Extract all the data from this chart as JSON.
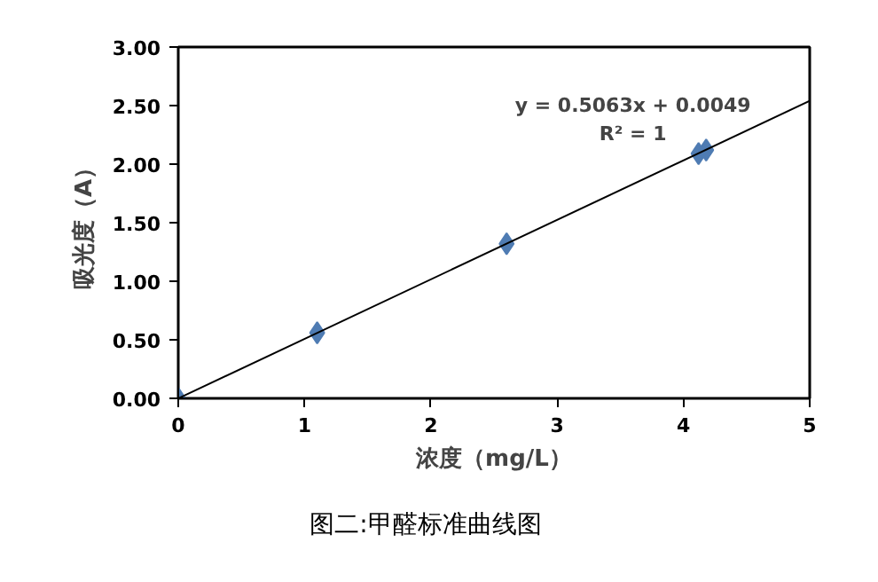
{
  "chart_data": {
    "type": "scatter",
    "xlabel": "浓度（mg/L）",
    "ylabel": "吸光度（A）",
    "xlim": [
      0,
      5
    ],
    "xticks": [
      0,
      1,
      2,
      3,
      4,
      5
    ],
    "ylim": [
      0,
      3
    ],
    "yticks": [
      {
        "value": 0,
        "label": "0.00"
      },
      {
        "value": 0.5,
        "label": "0.50"
      },
      {
        "value": 1,
        "label": "1.00"
      },
      {
        "value": 1.5,
        "label": "1.50"
      },
      {
        "value": 2,
        "label": "2.00"
      },
      {
        "value": 2.5,
        "label": "2.50"
      },
      {
        "value": 3,
        "label": "3.00"
      }
    ],
    "marker": "diamond",
    "grid": false,
    "series": [
      {
        "color": "#4f7cb3",
        "x": [
          0,
          1.1,
          2.6,
          4.12,
          4.18
        ],
        "values": [
          0,
          0.56,
          1.32,
          2.09,
          2.12
        ]
      },
      {
        "type": "line",
        "color": "#000000",
        "marker": "none",
        "x": [
          0,
          5
        ],
        "values": [
          0,
          2.54
        ]
      }
    ],
    "annotations": [
      "y = 0.5063x + 0.0049",
      "R² = 1",
      "图二:甲醛标准曲线图"
    ]
  }
}
